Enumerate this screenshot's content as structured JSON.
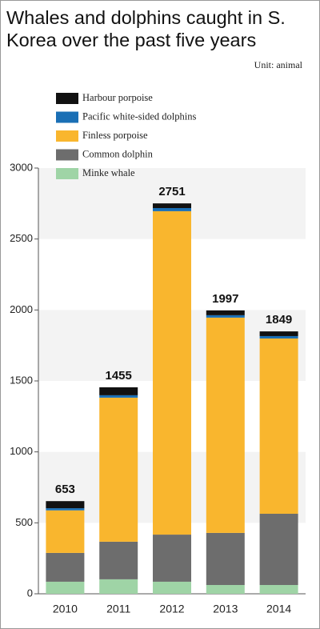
{
  "chart_data": {
    "type": "stacked_bar",
    "title": "Whales and dolphins caught in S. Korea over the past five years",
    "unit": "Unit: animal",
    "categories": [
      "2010",
      "2011",
      "2012",
      "2013",
      "2014"
    ],
    "series": [
      {
        "name": "Minke whale",
        "color": "#9fd4a6",
        "values": [
          85,
          102,
          85,
          62,
          62
        ]
      },
      {
        "name": "Common dolphin",
        "color": "#6d6d6d",
        "values": [
          203,
          265,
          332,
          367,
          502
        ]
      },
      {
        "name": "Finless porpoise",
        "color": "#f9b62e",
        "values": [
          300,
          1015,
          2279,
          1517,
          1235
        ]
      },
      {
        "name": "Pacific white-sided dolphins",
        "color": "#1a6fb5",
        "values": [
          15,
          17,
          22,
          17,
          17
        ]
      },
      {
        "name": "Harbour porpoise",
        "color": "#111111",
        "values": [
          50,
          56,
          33,
          34,
          33
        ]
      }
    ],
    "totals": [
      653,
      1455,
      2751,
      1997,
      1849
    ],
    "ylim": [
      0,
      3000
    ],
    "yticks": [
      0,
      500,
      1000,
      1500,
      2000,
      2500,
      3000
    ]
  }
}
